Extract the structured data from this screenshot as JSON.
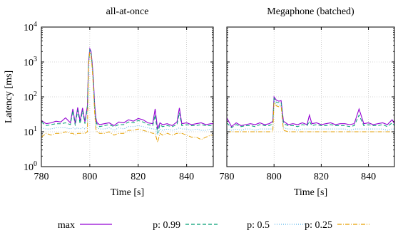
{
  "chart_data": [
    {
      "type": "line",
      "title": "all-at-once",
      "xlabel": "Time [s]",
      "ylabel": "Latency [ms]",
      "xlim": [
        780,
        851
      ],
      "ylim": [
        1,
        10000
      ],
      "yscale": "log",
      "x_ticks": [
        780,
        800,
        820,
        840
      ],
      "y_ticks": [
        1,
        10,
        100,
        1000,
        10000
      ],
      "grid": true,
      "x": [
        780,
        782,
        784,
        786,
        788,
        790,
        792,
        793,
        794,
        795,
        796,
        797,
        798,
        799,
        799.5,
        800,
        800.5,
        801,
        801.5,
        802,
        802.5,
        803,
        804,
        806,
        808,
        810,
        812,
        814,
        816,
        818,
        820,
        822,
        824,
        826,
        827,
        828,
        829,
        830,
        832,
        834,
        836,
        837,
        838,
        840,
        842,
        844,
        846,
        848,
        850,
        851
      ],
      "series": [
        {
          "name": "max",
          "color": "#9400d3",
          "dash": "",
          "values": [
            21,
            17,
            18,
            20,
            19,
            25,
            18,
            45,
            17,
            50,
            20,
            48,
            19,
            55,
            1000,
            2400,
            2000,
            900,
            300,
            60,
            25,
            18,
            16,
            17,
            18,
            15,
            19,
            18,
            22,
            20,
            24,
            22,
            18,
            17,
            45,
            12,
            18,
            16,
            17,
            15,
            19,
            48,
            17,
            18,
            16,
            17,
            18,
            16,
            17,
            17
          ]
        },
        {
          "name": "p: 0.99",
          "color": "#009e73",
          "dash": "5,3",
          "values": [
            19,
            15,
            16,
            17,
            17,
            18,
            16,
            40,
            15,
            42,
            17,
            40,
            17,
            48,
            950,
            2200,
            1850,
            800,
            250,
            50,
            20,
            16,
            14,
            15,
            16,
            14,
            16,
            16,
            19,
            18,
            21,
            19,
            16,
            15,
            30,
            9,
            16,
            14,
            15,
            14,
            16,
            35,
            15,
            16,
            15,
            15,
            16,
            15,
            15,
            16
          ]
        },
        {
          "name": "p: 0.5",
          "color": "#56b4e9",
          "dash": "1,2",
          "values": [
            13,
            12,
            12,
            13,
            13,
            13,
            12,
            13,
            12,
            13,
            12,
            13,
            12,
            14,
            900,
            2000,
            1700,
            700,
            200,
            40,
            15,
            13,
            12,
            12,
            13,
            11,
            13,
            12,
            14,
            14,
            15,
            14,
            13,
            12,
            12,
            8,
            12,
            11,
            12,
            11,
            12,
            13,
            12,
            12,
            11,
            12,
            11,
            11,
            12,
            12
          ]
        },
        {
          "name": "p: 0.25",
          "color": "#e69f00",
          "dash": "6,2,1,2",
          "values": [
            7,
            9,
            8,
            9,
            9,
            10,
            9,
            9,
            8,
            9,
            9,
            9,
            9,
            10,
            850,
            1900,
            1600,
            650,
            180,
            35,
            12,
            10,
            9,
            9,
            10,
            8,
            9,
            9,
            11,
            11,
            12,
            11,
            10,
            9,
            9,
            5,
            9,
            8,
            9,
            8,
            9,
            9,
            9,
            8,
            7,
            7,
            6,
            7,
            8,
            8
          ]
        }
      ]
    },
    {
      "type": "line",
      "title": "Megaphone (batched)",
      "xlabel": "Time [s]",
      "ylabel": "",
      "xlim": [
        780,
        851
      ],
      "ylim": [
        1,
        10000
      ],
      "yscale": "log",
      "x_ticks": [
        780,
        800,
        820,
        840
      ],
      "y_ticks": [
        1,
        10,
        100,
        1000,
        10000
      ],
      "grid": true,
      "x": [
        780,
        782,
        784,
        786,
        788,
        790,
        792,
        794,
        796,
        798,
        799.5,
        800,
        801,
        802,
        803,
        804,
        806,
        808,
        810,
        812,
        814,
        815,
        816,
        818,
        820,
        822,
        824,
        826,
        828,
        830,
        832,
        834,
        836,
        838,
        840,
        842,
        844,
        846,
        848,
        850,
        851
      ],
      "series": [
        {
          "name": "max",
          "color": "#9400d3",
          "dash": "",
          "values": [
            25,
            14,
            18,
            15,
            16,
            17,
            16,
            18,
            16,
            17,
            20,
            100,
            80,
            75,
            78,
            20,
            16,
            17,
            16,
            18,
            16,
            30,
            17,
            18,
            16,
            17,
            18,
            16,
            17,
            17,
            16,
            17,
            45,
            17,
            18,
            16,
            17,
            18,
            16,
            22,
            17
          ]
        },
        {
          "name": "p: 0.99",
          "color": "#009e73",
          "dash": "5,3",
          "values": [
            18,
            13,
            16,
            14,
            15,
            15,
            14,
            16,
            15,
            15,
            17,
            90,
            70,
            68,
            70,
            17,
            15,
            15,
            14,
            16,
            15,
            20,
            15,
            16,
            15,
            15,
            16,
            15,
            15,
            15,
            14,
            15,
            30,
            15,
            16,
            15,
            15,
            16,
            14,
            18,
            15
          ]
        },
        {
          "name": "p: 0.5",
          "color": "#56b4e9",
          "dash": "1,2",
          "values": [
            12,
            11,
            12,
            11,
            12,
            12,
            11,
            12,
            12,
            12,
            12,
            80,
            60,
            58,
            60,
            13,
            12,
            12,
            11,
            12,
            12,
            12,
            12,
            12,
            12,
            12,
            12,
            12,
            12,
            12,
            11,
            12,
            12,
            12,
            12,
            12,
            12,
            12,
            11,
            12,
            12
          ]
        },
        {
          "name": "p: 0.25",
          "color": "#e69f00",
          "dash": "6,2,1,2",
          "values": [
            10,
            10,
            10,
            10,
            10,
            10,
            10,
            10,
            10,
            10,
            10,
            70,
            55,
            52,
            55,
            11,
            10,
            10,
            10,
            10,
            10,
            10,
            10,
            10,
            10,
            10,
            10,
            10,
            10,
            10,
            10,
            10,
            10,
            10,
            10,
            10,
            10,
            10,
            10,
            10,
            10
          ]
        }
      ]
    }
  ],
  "legend": {
    "placement": "bottom",
    "entries": [
      {
        "label": "max",
        "color": "#9400d3",
        "dash": ""
      },
      {
        "label": "p: 0.99",
        "color": "#009e73",
        "dash": "5,3"
      },
      {
        "label": "p: 0.5",
        "color": "#56b4e9",
        "dash": "1,2"
      },
      {
        "label": "p: 0.25",
        "color": "#e69f00",
        "dash": "6,2,1,2"
      }
    ]
  }
}
